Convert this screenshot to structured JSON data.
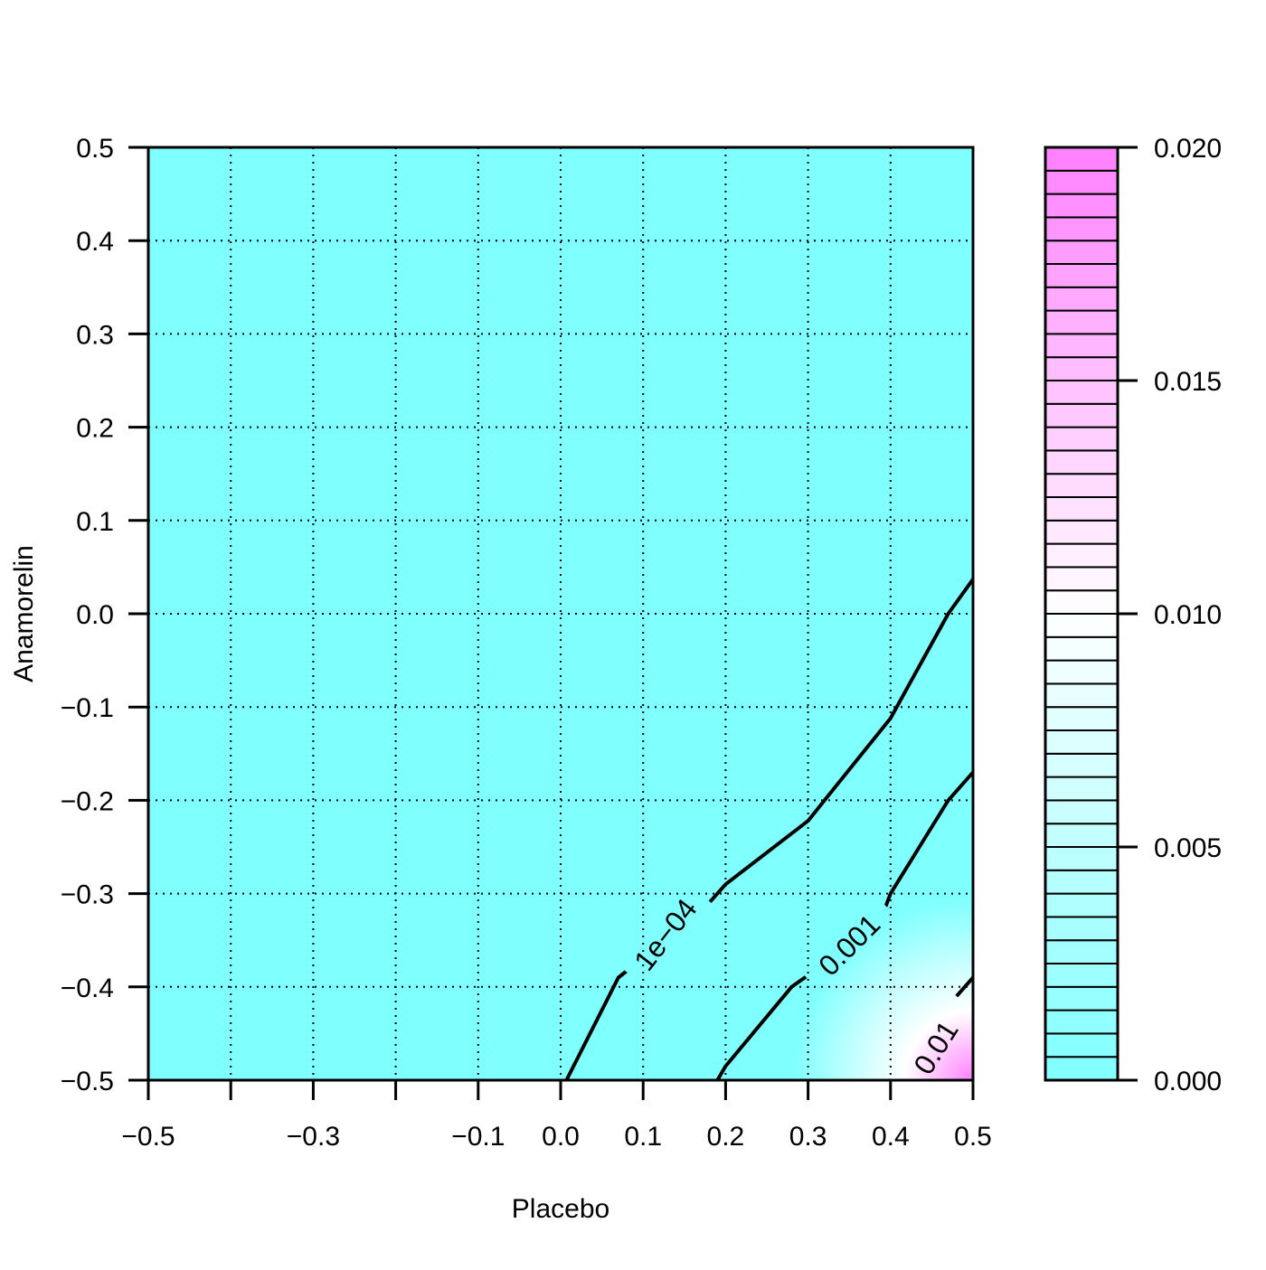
{
  "colors": {
    "low": "#80ffff",
    "mid": "#ffffff",
    "high": "#ff80ff",
    "grid": "#000000",
    "contour": "#000000"
  },
  "chart_data": {
    "type": "heatmap",
    "subtype": "filled-contour",
    "title": "",
    "xlabel": "Placebo",
    "ylabel": "Anamorelin",
    "xlim": [
      -0.5,
      0.5
    ],
    "ylim": [
      -0.5,
      0.5
    ],
    "x_tick_values": [
      -0.5,
      -0.4,
      -0.3,
      -0.2,
      -0.1,
      0.0,
      0.1,
      0.2,
      0.3,
      0.4,
      0.5
    ],
    "x_tick_labels": [
      "−0.5",
      "",
      "−0.3",
      "",
      "−0.1",
      "0.0",
      "0.1",
      "0.2",
      "0.3",
      "0.4",
      "0.5"
    ],
    "y_tick_values": [
      -0.5,
      -0.4,
      -0.3,
      -0.2,
      -0.1,
      0.0,
      0.1,
      0.2,
      0.3,
      0.4,
      0.5
    ],
    "y_tick_labels": [
      "−0.5",
      "−0.4",
      "−0.3",
      "−0.2",
      "−0.1",
      "0.0",
      "0.1",
      "0.2",
      "0.3",
      "0.4",
      "0.5"
    ],
    "grid": true,
    "colorbar": {
      "placement": "right",
      "range": [
        0.0,
        0.02
      ],
      "levels": 40,
      "tick_values": [
        0.0,
        0.005,
        0.01,
        0.015,
        0.02
      ],
      "tick_labels": [
        "0.000",
        "0.005",
        "0.010",
        "0.015",
        "0.020"
      ]
    },
    "contours": [
      {
        "label": "1e−04",
        "points": [
          [
            0.007,
            -0.5
          ],
          [
            0.07,
            -0.39
          ],
          [
            0.17,
            -0.32
          ],
          [
            0.2,
            -0.29
          ],
          [
            0.3,
            -0.222
          ],
          [
            0.32,
            -0.2
          ],
          [
            0.4,
            -0.112
          ],
          [
            0.47,
            0.0
          ],
          [
            0.5,
            0.037
          ]
        ],
        "label_at": [
          0.127,
          -0.344
        ],
        "label_angle": -52
      },
      {
        "label": "0.001",
        "points": [
          [
            0.19,
            -0.5
          ],
          [
            0.2,
            -0.485
          ],
          [
            0.28,
            -0.4
          ],
          [
            0.32,
            -0.375
          ],
          [
            0.385,
            -0.335
          ],
          [
            0.4,
            -0.3
          ],
          [
            0.47,
            -0.2
          ],
          [
            0.5,
            -0.17
          ]
        ],
        "label_at": [
          0.35,
          -0.355
        ],
        "label_angle": -45
      },
      {
        "label": "0.01",
        "points": [
          [
            0.48,
            -0.41
          ],
          [
            0.5,
            -0.39
          ]
        ],
        "label_at": [
          0.455,
          -0.465
        ],
        "label_angle": -58
      }
    ],
    "field_peak": {
      "x": 0.5,
      "y": -0.5,
      "value": 0.02
    }
  }
}
